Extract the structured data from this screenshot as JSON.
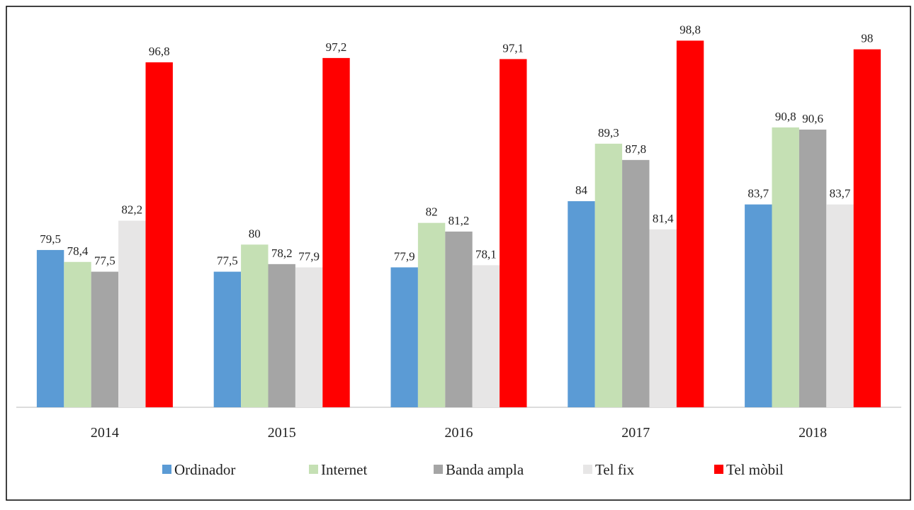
{
  "chart_data": {
    "type": "bar",
    "categories": [
      "2014",
      "2015",
      "2016",
      "2017",
      "2018"
    ],
    "series": [
      {
        "name": "Ordinador",
        "color": "#5b9bd5",
        "values": [
          79.5,
          77.5,
          77.9,
          84,
          83.7
        ],
        "value_labels": [
          "79,5",
          "77,5",
          "77,9",
          "84",
          "83,7"
        ]
      },
      {
        "name": "Internet",
        "color": "#c5e0b4",
        "values": [
          78.4,
          80,
          82,
          89.3,
          90.8
        ],
        "value_labels": [
          "78,4",
          "80",
          "82",
          "89,3",
          "90,8"
        ]
      },
      {
        "name": "Banda ampla",
        "color": "#a5a5a5",
        "values": [
          77.5,
          78.2,
          81.2,
          87.8,
          90.6
        ],
        "value_labels": [
          "77,5",
          "78,2",
          "81,2",
          "87,8",
          "90,6"
        ]
      },
      {
        "name": "Tel fix",
        "color": "#e7e6e6",
        "values": [
          82.2,
          77.9,
          78.1,
          81.4,
          83.7
        ],
        "value_labels": [
          "82,2",
          "77,9",
          "78,1",
          "81,4",
          "83,7"
        ]
      },
      {
        "name": "Tel mòbil",
        "color": "#ff0000",
        "values": [
          96.8,
          97.2,
          97.1,
          98.8,
          98
        ],
        "value_labels": [
          "96,8",
          "97,2",
          "97,1",
          "98,8",
          "98"
        ]
      }
    ],
    "ylim": [
      65,
      100
    ],
    "grid": false,
    "legend": "bottom"
  }
}
